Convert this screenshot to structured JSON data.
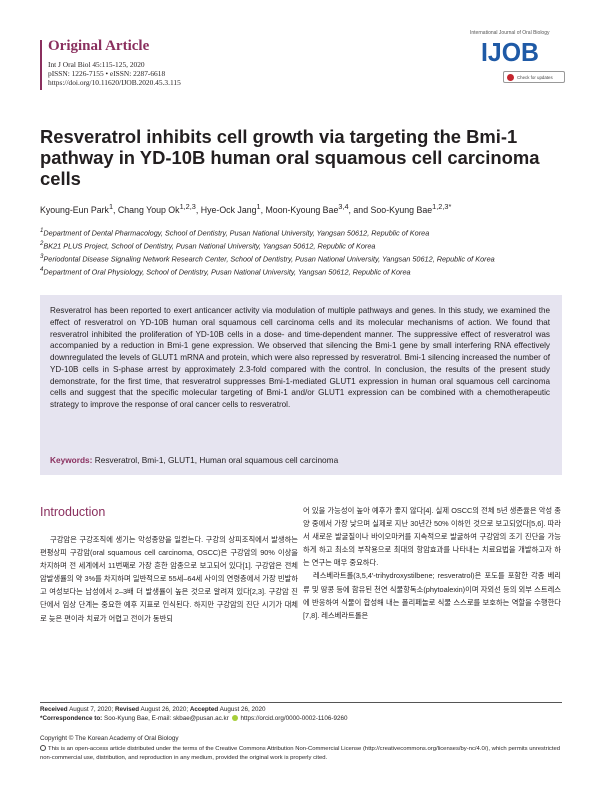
{
  "header": {
    "section_label": "Original Article",
    "citation": "Int J Oral Biol 45:115-125, 2020",
    "issn": "pISSN: 1226-7155 • eISSN: 2287-6618",
    "doi": "https://doi.org/10.11620/IJOB.2020.45.3.115",
    "journal_name": "International Journal of Oral Biology",
    "logo_text": "IJOB",
    "check_updates": "Check for updates",
    "accent_color": "#8a2f5e",
    "logo_color": "#1f5aa6"
  },
  "title": "Resveratrol inhibits cell growth via targeting the Bmi-1 pathway in YD-10B human oral squamous cell carcinoma cells",
  "authors": [
    {
      "name": "Kyoung-Eun Park",
      "sup": "1"
    },
    {
      "name": "Chang Youp Ok",
      "sup": "1,2,3"
    },
    {
      "name": "Hye-Ock Jang",
      "sup": "1"
    },
    {
      "name": "Moon-Kyoung Bae",
      "sup": "3,4"
    },
    {
      "name": "Soo-Kyung Bae",
      "sup": "1,2,3*"
    }
  ],
  "affiliations": [
    {
      "num": "1",
      "text": "Department of Dental Pharmacology, School of Dentistry, Pusan National University, Yangsan 50612, Republic of Korea"
    },
    {
      "num": "2",
      "text": "BK21 PLUS Project, School of Dentistry, Pusan National University, Yangsan 50612, Republic of Korea"
    },
    {
      "num": "3",
      "text": "Periodontal Disease Signaling Network Research Center, School of Dentistry, Pusan National University, Yangsan 50612, Republic of Korea"
    },
    {
      "num": "4",
      "text": "Department of Oral Physiology, School of Dentistry, Pusan National University, Yangsan 50612, Republic of Korea"
    }
  ],
  "abstract": "Resveratrol has been reported to exert anticancer activity via modulation of multiple pathways and genes. In this study, we examined the effect of resveratrol on YD-10B human oral squamous cell carcinoma cells and its molecular mechanisms of action. We found that resveratrol inhibited the proliferation of YD-10B cells in a dose- and time-dependent manner. The suppressive effect of resveratrol was accompanied by a reduction in Bmi-1 gene expression. We observed that silencing the Bmi-1 gene by small interfering RNA effectively downregulated the levels of GLUT1 mRNA and protein, which were also repressed by resveratrol. Bmi-1 silencing increased the number of YD-10B cells in S-phase arrest by approximately 2.3-fold compared with the control. In conclusion, the results of the present study demonstrate, for the first time, that resveratrol suppresses Bmi-1-mediated GLUT1 expression in human oral squamous cell carcinoma cells and suggest that the specific molecular targeting of Bmi-1 and/or GLUT1 expression can be combined with a chemotherapeutic strategy to improve the response of oral cancer cells to resveratrol.",
  "keywords_label": "Keywords:",
  "keywords": "Resveratrol, Bmi-1, GLUT1, Human oral squamous cell carcinoma",
  "intro": {
    "heading": "Introduction",
    "col1_p1": "구강암은 구강조직에 생기는 악성종양을 일컫는다. 구강의 상피조직에서 발생하는 편평상피 구강암(oral squamous cell carcinoma, OSCC)은 구강암의 90% 이상을 차지하며 전 세계에서 11번째로 가장 흔한 암종으로 보고되어 있다[1]. 구강암은 전체 암발생률의 약 3%를 차지하며 일반적으로 55세–64세 사이의 연령층에서 가장 빈발하고 여성보다는 남성에서 2–3배 더 발생률이 높은 것으로 알려져 있다[2,3]. 구강암 진단에서 임상 단계는 중요한 예후 지표로 인식된다. 하지만 구강암의 진단 시기가 대체로 늦은 편이라 치료가 어렵고 전이가 동반되",
    "col2_p1": "어 있을 가능성이 높아 예후가 좋지 않다[4]. 실제 OSCC의 전체 5년 생존율은 악성 종양 중에서 가장 낮으며 실제로 지난 30년간 50% 이하인 것으로 보고되었다[5,6]. 따라서 새로운 발굴질이나 바이오마커를 지속적으로 발굴하여 구강암의 조기 진단을 가능하게 하고 최소의 부작용으로 최대의 항암효과를 나타내는 치료요법을 개발하고자 하는 연구는 매우 중요하다.",
    "col2_p2": "레스베라트롤(3,5,4′-trihydroxystilbene; resveratrol)은 포도를 포함한 각종 베리류 및 땅콩 등에 함유된 천연 식물항독소(phytoalexin)이며 자외선 등의 외부 스트레스에 반응하여 식물이 합성해 내는 폴리페놀로 식물 스스로를 보호하는 역할을 수행한다[7,8]. 레스베라트롤은"
  },
  "footer": {
    "received_label": "Received",
    "received": "August 7, 2020;",
    "revised_label": "Revised",
    "revised": "August 26, 2020;",
    "accepted_label": "Accepted",
    "accepted": "August 26, 2020",
    "correspondence_label": "*Correspondence to:",
    "correspondence": "Soo-Kyung Bae, E-mail: skbae@pusan.ac.kr",
    "orcid": "https://orcid.org/0000-0002-1106-9260",
    "copyright": "Copyright © The Korean Academy of Oral Biology",
    "license": "This is an open-access article distributed under the terms of the Creative Commons Attribution Non-Commercial License (http://creativecommons.org/licenses/by-nc/4.0/), which permits unrestricted non-commercial use, distribution, and reproduction in any medium, provided the original work is properly cited."
  }
}
